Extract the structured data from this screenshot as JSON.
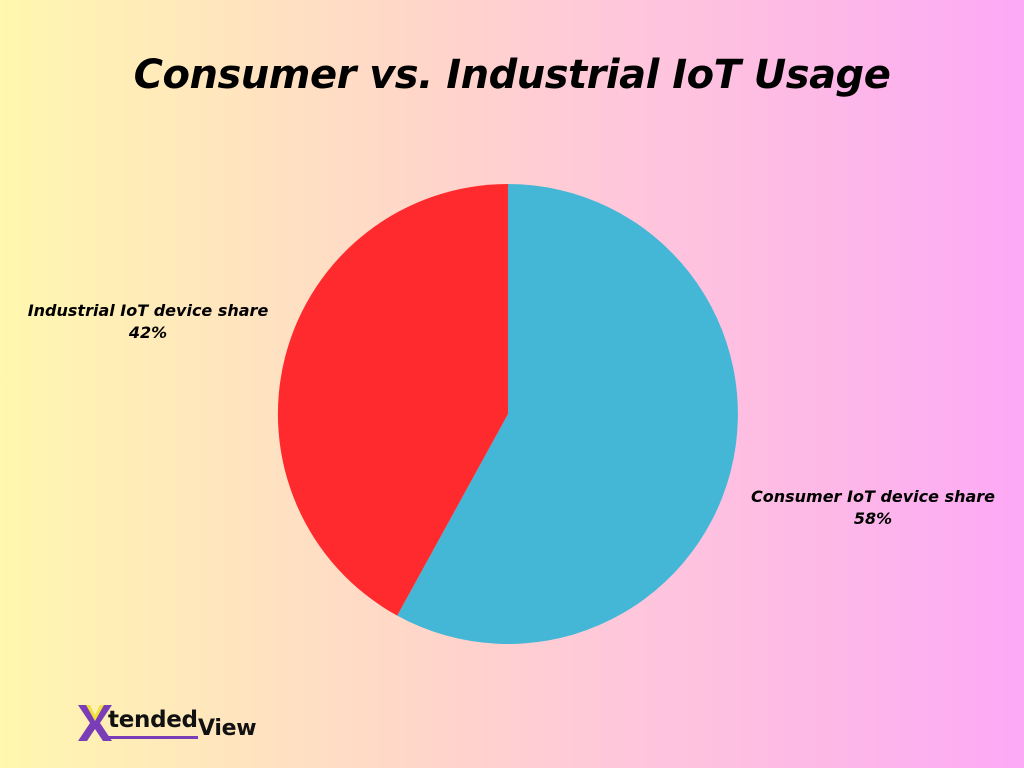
{
  "title": "Consumer vs. Industrial IoT Usage",
  "colors": {
    "consumer": "#44B6D6",
    "industrial": "#FF2A2D",
    "logo_purple": "#7A3DB8",
    "logo_yellow": "#F4E23C"
  },
  "labels": {
    "industrial": {
      "name": "Industrial IoT device share",
      "value": "42%"
    },
    "consumer": {
      "name": "Consumer IoT device share",
      "value": "58%"
    }
  },
  "logo": {
    "mark": "X",
    "part1": "tended",
    "part2": "View"
  },
  "chart_data": {
    "type": "pie",
    "title": "Consumer vs. Industrial IoT Usage",
    "categories": [
      "Consumer IoT device share",
      "Industrial IoT device share"
    ],
    "values": [
      58,
      42
    ],
    "unit": "%",
    "colors": [
      "#44B6D6",
      "#FF2A2D"
    ],
    "start_angle": "12 o'clock, clockwise",
    "legend": "none (direct labels)"
  }
}
